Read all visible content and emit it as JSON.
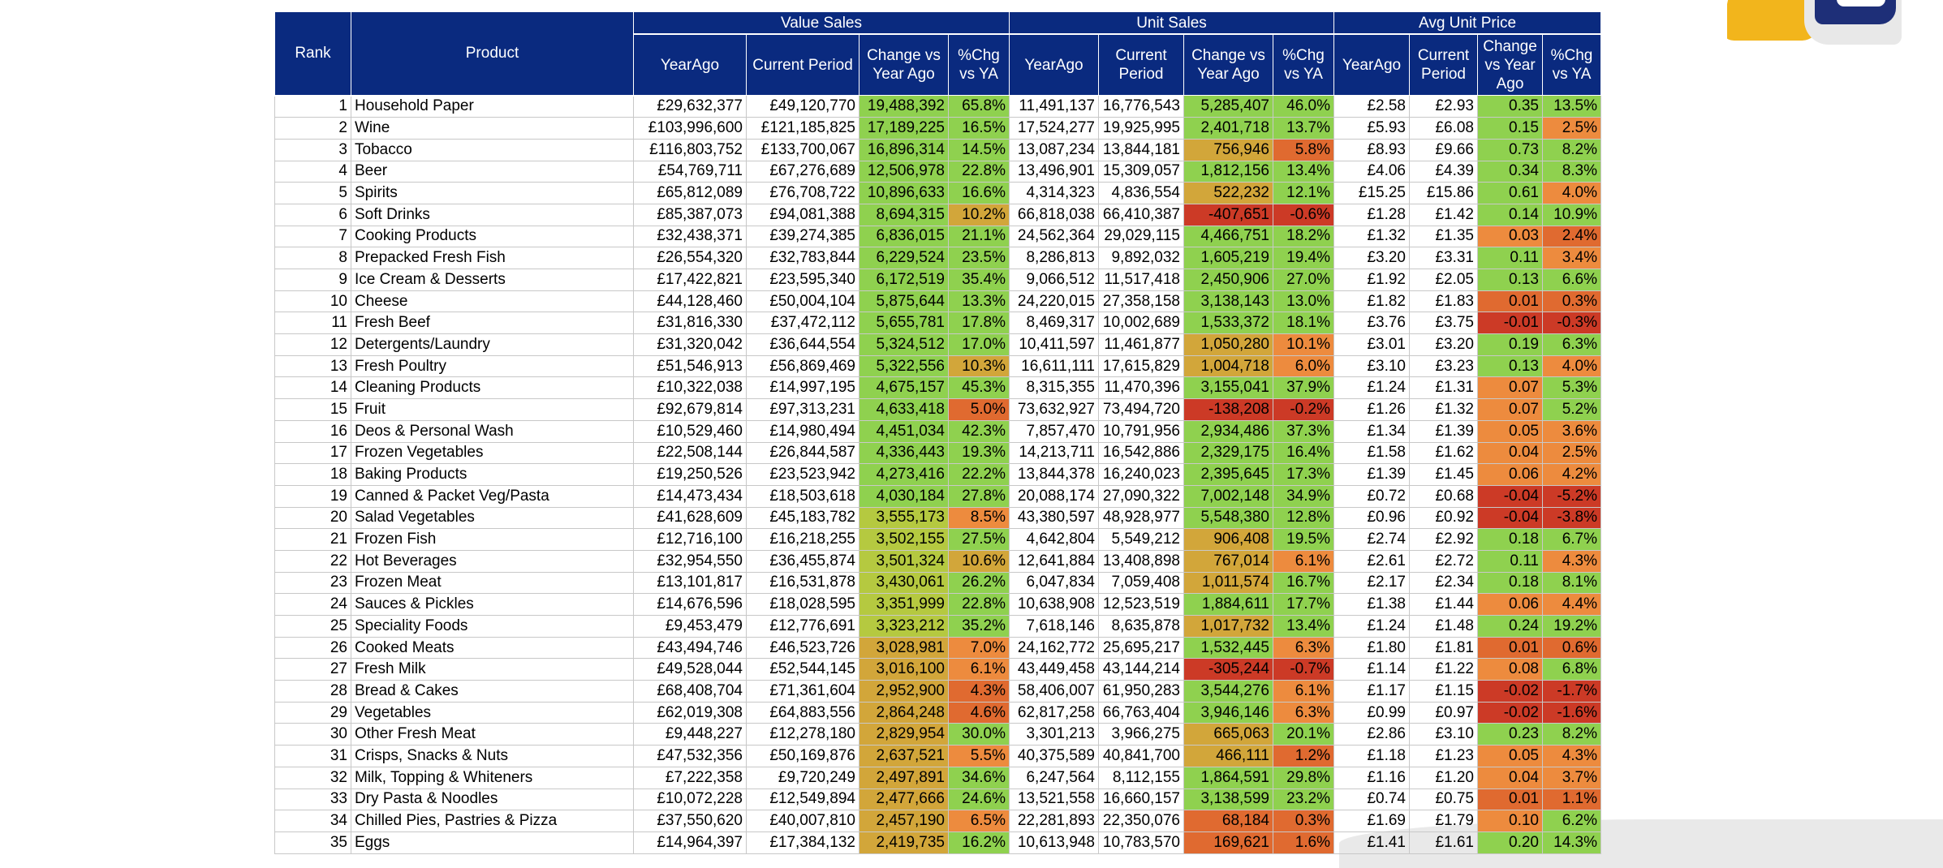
{
  "headers": {
    "rank": "Rank",
    "product": "Product",
    "value_sales": "Value Sales",
    "unit_sales": "Unit Sales",
    "avg_unit_price": "Avg Unit Price",
    "value": [
      "YearAgo",
      "Current Period",
      "Change vs Year Ago",
      "%Chg vs YA"
    ],
    "unit": [
      "YearAgo",
      "Current Period",
      "Change vs Year Ago",
      "%Chg vs YA"
    ],
    "price": [
      "YearAgo",
      "Current Period",
      "Change vs Year Ago",
      "%Chg vs YA"
    ]
  },
  "rows": [
    [
      "1",
      "Household Paper",
      "£29,632,377",
      "£49,120,770",
      "19,488,392",
      "65.8%",
      "11,491,137",
      "16,776,543",
      "5,285,407",
      "46.0%",
      "£2.58",
      "£2.93",
      "0.35",
      "13.5%"
    ],
    [
      "2",
      "Wine",
      "£103,996,600",
      "£121,185,825",
      "17,189,225",
      "16.5%",
      "17,524,277",
      "19,925,995",
      "2,401,718",
      "13.7%",
      "£5.93",
      "£6.08",
      "0.15",
      "2.5%"
    ],
    [
      "3",
      "Tobacco",
      "£116,803,752",
      "£133,700,067",
      "16,896,314",
      "14.5%",
      "13,087,234",
      "13,844,181",
      "756,946",
      "5.8%",
      "£8.93",
      "£9.66",
      "0.73",
      "8.2%"
    ],
    [
      "4",
      "Beer",
      "£54,769,711",
      "£67,276,689",
      "12,506,978",
      "22.8%",
      "13,496,901",
      "15,309,057",
      "1,812,156",
      "13.4%",
      "£4.06",
      "£4.39",
      "0.34",
      "8.3%"
    ],
    [
      "5",
      "Spirits",
      "£65,812,089",
      "£76,708,722",
      "10,896,633",
      "16.6%",
      "4,314,323",
      "4,836,554",
      "522,232",
      "12.1%",
      "£15.25",
      "£15.86",
      "0.61",
      "4.0%"
    ],
    [
      "6",
      "Soft Drinks",
      "£85,387,073",
      "£94,081,388",
      "8,694,315",
      "10.2%",
      "66,818,038",
      "66,410,387",
      "-407,651",
      "-0.6%",
      "£1.28",
      "£1.42",
      "0.14",
      "10.9%"
    ],
    [
      "7",
      "Cooking Products",
      "£32,438,371",
      "£39,274,385",
      "6,836,015",
      "21.1%",
      "24,562,364",
      "29,029,115",
      "4,466,751",
      "18.2%",
      "£1.32",
      "£1.35",
      "0.03",
      "2.4%"
    ],
    [
      "8",
      "Prepacked Fresh Fish",
      "£26,554,320",
      "£32,783,844",
      "6,229,524",
      "23.5%",
      "8,286,813",
      "9,892,032",
      "1,605,219",
      "19.4%",
      "£3.20",
      "£3.31",
      "0.11",
      "3.4%"
    ],
    [
      "9",
      "Ice Cream & Desserts",
      "£17,422,821",
      "£23,595,340",
      "6,172,519",
      "35.4%",
      "9,066,512",
      "11,517,418",
      "2,450,906",
      "27.0%",
      "£1.92",
      "£2.05",
      "0.13",
      "6.6%"
    ],
    [
      "10",
      "Cheese",
      "£44,128,460",
      "£50,004,104",
      "5,875,644",
      "13.3%",
      "24,220,015",
      "27,358,158",
      "3,138,143",
      "13.0%",
      "£1.82",
      "£1.83",
      "0.01",
      "0.3%"
    ],
    [
      "11",
      "Fresh Beef",
      "£31,816,330",
      "£37,472,112",
      "5,655,781",
      "17.8%",
      "8,469,317",
      "10,002,689",
      "1,533,372",
      "18.1%",
      "£3.76",
      "£3.75",
      "-0.01",
      "-0.3%"
    ],
    [
      "12",
      "Detergents/Laundry",
      "£31,320,042",
      "£36,644,554",
      "5,324,512",
      "17.0%",
      "10,411,597",
      "11,461,877",
      "1,050,280",
      "10.1%",
      "£3.01",
      "£3.20",
      "0.19",
      "6.3%"
    ],
    [
      "13",
      "Fresh Poultry",
      "£51,546,913",
      "£56,869,469",
      "5,322,556",
      "10.3%",
      "16,611,111",
      "17,615,829",
      "1,004,718",
      "6.0%",
      "£3.10",
      "£3.23",
      "0.13",
      "4.0%"
    ],
    [
      "14",
      "Cleaning Products",
      "£10,322,038",
      "£14,997,195",
      "4,675,157",
      "45.3%",
      "8,315,355",
      "11,470,396",
      "3,155,041",
      "37.9%",
      "£1.24",
      "£1.31",
      "0.07",
      "5.3%"
    ],
    [
      "15",
      "Fruit",
      "£92,679,814",
      "£97,313,231",
      "4,633,418",
      "5.0%",
      "73,632,927",
      "73,494,720",
      "-138,208",
      "-0.2%",
      "£1.26",
      "£1.32",
      "0.07",
      "5.2%"
    ],
    [
      "16",
      "Deos & Personal Wash",
      "£10,529,460",
      "£14,980,494",
      "4,451,034",
      "42.3%",
      "7,857,470",
      "10,791,956",
      "2,934,486",
      "37.3%",
      "£1.34",
      "£1.39",
      "0.05",
      "3.6%"
    ],
    [
      "17",
      "Frozen Vegetables",
      "£22,508,144",
      "£26,844,587",
      "4,336,443",
      "19.3%",
      "14,213,711",
      "16,542,886",
      "2,329,175",
      "16.4%",
      "£1.58",
      "£1.62",
      "0.04",
      "2.5%"
    ],
    [
      "18",
      "Baking Products",
      "£19,250,526",
      "£23,523,942",
      "4,273,416",
      "22.2%",
      "13,844,378",
      "16,240,023",
      "2,395,645",
      "17.3%",
      "£1.39",
      "£1.45",
      "0.06",
      "4.2%"
    ],
    [
      "19",
      "Canned & Packet Veg/Pasta",
      "£14,473,434",
      "£18,503,618",
      "4,030,184",
      "27.8%",
      "20,088,174",
      "27,090,322",
      "7,002,148",
      "34.9%",
      "£0.72",
      "£0.68",
      "-0.04",
      "-5.2%"
    ],
    [
      "20",
      "Salad Vegetables",
      "£41,628,609",
      "£45,183,782",
      "3,555,173",
      "8.5%",
      "43,380,597",
      "48,928,977",
      "5,548,380",
      "12.8%",
      "£0.96",
      "£0.92",
      "-0.04",
      "-3.8%"
    ],
    [
      "21",
      "Frozen Fish",
      "£12,716,100",
      "£16,218,255",
      "3,502,155",
      "27.5%",
      "4,642,804",
      "5,549,212",
      "906,408",
      "19.5%",
      "£2.74",
      "£2.92",
      "0.18",
      "6.7%"
    ],
    [
      "22",
      "Hot Beverages",
      "£32,954,550",
      "£36,455,874",
      "3,501,324",
      "10.6%",
      "12,641,884",
      "13,408,898",
      "767,014",
      "6.1%",
      "£2.61",
      "£2.72",
      "0.11",
      "4.3%"
    ],
    [
      "23",
      "Frozen Meat",
      "£13,101,817",
      "£16,531,878",
      "3,430,061",
      "26.2%",
      "6,047,834",
      "7,059,408",
      "1,011,574",
      "16.7%",
      "£2.17",
      "£2.34",
      "0.18",
      "8.1%"
    ],
    [
      "24",
      "Sauces & Pickles",
      "£14,676,596",
      "£18,028,595",
      "3,351,999",
      "22.8%",
      "10,638,908",
      "12,523,519",
      "1,884,611",
      "17.7%",
      "£1.38",
      "£1.44",
      "0.06",
      "4.4%"
    ],
    [
      "25",
      "Speciality Foods",
      "£9,453,479",
      "£12,776,691",
      "3,323,212",
      "35.2%",
      "7,618,146",
      "8,635,878",
      "1,017,732",
      "13.4%",
      "£1.24",
      "£1.48",
      "0.24",
      "19.2%"
    ],
    [
      "26",
      "Cooked Meats",
      "£43,494,746",
      "£46,523,726",
      "3,028,981",
      "7.0%",
      "24,162,772",
      "25,695,217",
      "1,532,445",
      "6.3%",
      "£1.80",
      "£1.81",
      "0.01",
      "0.6%"
    ],
    [
      "27",
      "Fresh Milk",
      "£49,528,044",
      "£52,544,145",
      "3,016,100",
      "6.1%",
      "43,449,458",
      "43,144,214",
      "-305,244",
      "-0.7%",
      "£1.14",
      "£1.22",
      "0.08",
      "6.8%"
    ],
    [
      "28",
      "Bread & Cakes",
      "£68,408,704",
      "£71,361,604",
      "2,952,900",
      "4.3%",
      "58,406,007",
      "61,950,283",
      "3,544,276",
      "6.1%",
      "£1.17",
      "£1.15",
      "-0.02",
      "-1.7%"
    ],
    [
      "29",
      "Vegetables",
      "£62,019,308",
      "£64,883,556",
      "2,864,248",
      "4.6%",
      "62,817,258",
      "66,763,404",
      "3,946,146",
      "6.3%",
      "£0.99",
      "£0.97",
      "-0.02",
      "-1.6%"
    ],
    [
      "30",
      "Other Fresh Meat",
      "£9,448,227",
      "£12,278,180",
      "2,829,954",
      "30.0%",
      "3,301,213",
      "3,966,275",
      "665,063",
      "20.1%",
      "£2.86",
      "£3.10",
      "0.23",
      "8.2%"
    ],
    [
      "31",
      "Crisps, Snacks & Nuts",
      "£47,532,356",
      "£50,169,876",
      "2,637,521",
      "5.5%",
      "40,375,589",
      "40,841,700",
      "466,111",
      "1.2%",
      "£1.18",
      "£1.23",
      "0.05",
      "4.3%"
    ],
    [
      "32",
      "Milk, Topping & Whiteners",
      "£7,222,358",
      "£9,720,249",
      "2,497,891",
      "34.6%",
      "6,247,564",
      "8,112,155",
      "1,864,591",
      "29.8%",
      "£1.16",
      "£1.20",
      "0.04",
      "3.7%"
    ],
    [
      "33",
      "Dry Pasta & Noodles",
      "£10,072,228",
      "£12,549,894",
      "2,477,666",
      "24.6%",
      "13,521,558",
      "16,660,157",
      "3,138,599",
      "23.2%",
      "£0.74",
      "£0.75",
      "0.01",
      "1.1%"
    ],
    [
      "34",
      "Chilled Pies, Pastries & Pizza",
      "£37,550,620",
      "£40,007,810",
      "2,457,190",
      "6.5%",
      "22,281,893",
      "22,350,076",
      "68,184",
      "0.3%",
      "£1.69",
      "£1.79",
      "0.10",
      "6.2%"
    ],
    [
      "35",
      "Eggs",
      "£14,964,397",
      "£17,384,132",
      "2,419,735",
      "16.2%",
      "10,613,948",
      "10,783,570",
      "169,621",
      "1.6%",
      "£1.41",
      "£1.61",
      "0.20",
      "14.3%"
    ]
  ]
}
